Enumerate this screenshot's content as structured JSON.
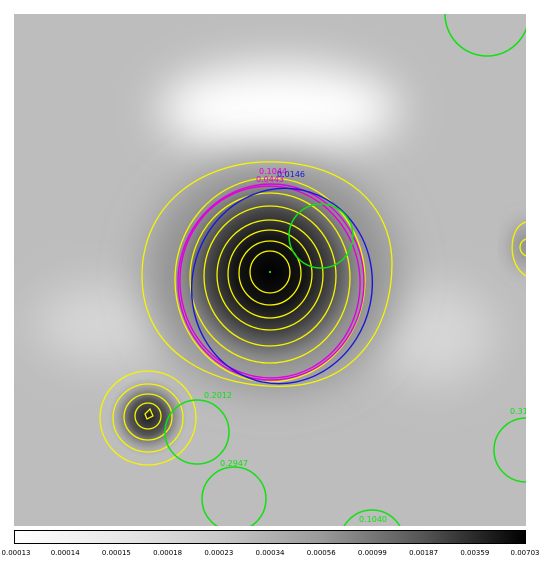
{
  "viewer": {
    "colors": {
      "yellow": "#f5f500",
      "green": "#10e010",
      "magenta": "#e000e0",
      "blue": "#1818d8"
    },
    "labels": {
      "green_top_mid": "0.2012",
      "green_lower_left": "0.2947",
      "green_bottom": "0.1040",
      "green_right_edge": "0.31",
      "magenta_top": "0.1044",
      "blue_top": "0.0146",
      "magenta_top_b": "0.0443"
    }
  },
  "colorbar": {
    "ticks": [
      "0.00013",
      "0.00014",
      "0.00015",
      "0.00018",
      "0.00023",
      "0.00034",
      "0.00056",
      "0.00099",
      "0.00187",
      "0.00359",
      "0.00703"
    ]
  }
}
